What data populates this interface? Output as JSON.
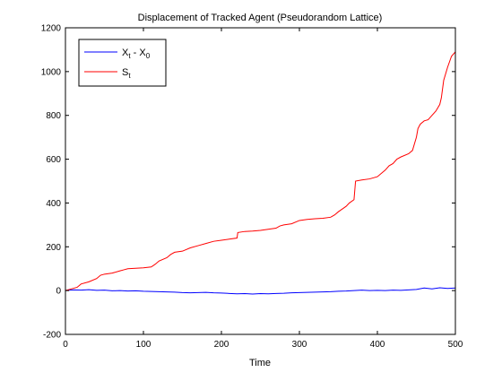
{
  "chart_data": {
    "type": "line",
    "title": "Displacement of Tracked Agent (Pseudorandom Lattice)",
    "xlabel": "Time",
    "ylabel": "",
    "xlim": [
      0,
      500
    ],
    "ylim": [
      -200,
      1200
    ],
    "x_ticks": [
      0,
      100,
      200,
      300,
      400,
      500
    ],
    "y_ticks": [
      -200,
      0,
      200,
      400,
      600,
      800,
      1000,
      1200
    ],
    "grid": false,
    "legend_position": "top-left",
    "series": [
      {
        "name_main": "X",
        "name_sub1": "t",
        "name_mid": " - X",
        "name_sub2": "0",
        "color": "#0000ff",
        "x": [
          0,
          10,
          20,
          30,
          40,
          50,
          60,
          70,
          80,
          90,
          100,
          110,
          120,
          130,
          140,
          150,
          160,
          170,
          180,
          190,
          200,
          210,
          220,
          230,
          240,
          250,
          260,
          270,
          280,
          290,
          300,
          310,
          320,
          330,
          340,
          350,
          360,
          370,
          380,
          390,
          400,
          410,
          420,
          430,
          440,
          450,
          460,
          470,
          480,
          490,
          500
        ],
        "y": [
          0,
          3,
          2,
          4,
          1,
          2,
          -1,
          0,
          -2,
          -1,
          -3,
          -4,
          -5,
          -6,
          -7,
          -9,
          -10,
          -9,
          -8,
          -10,
          -11,
          -13,
          -15,
          -14,
          -16,
          -14,
          -15,
          -13,
          -12,
          -10,
          -9,
          -8,
          -7,
          -6,
          -5,
          -3,
          -2,
          0,
          2,
          0,
          1,
          0,
          2,
          1,
          3,
          5,
          12,
          8,
          13,
          10,
          12
        ]
      },
      {
        "name_main": "S",
        "name_sub1": "t",
        "name_mid": "",
        "name_sub2": "",
        "color": "#ff0000",
        "x": [
          0,
          10,
          15,
          20,
          30,
          40,
          45,
          50,
          60,
          70,
          75,
          80,
          90,
          100,
          110,
          115,
          120,
          130,
          135,
          140,
          150,
          160,
          170,
          180,
          190,
          200,
          210,
          220,
          221,
          230,
          240,
          250,
          260,
          270,
          275,
          280,
          290,
          300,
          310,
          320,
          330,
          340,
          345,
          350,
          360,
          364,
          370,
          372,
          380,
          390,
          400,
          410,
          415,
          420,
          425,
          430,
          440,
          445,
          450,
          452,
          455,
          460,
          465,
          470,
          475,
          480,
          482,
          485,
          490,
          495,
          500
        ],
        "y": [
          0,
          10,
          15,
          30,
          40,
          55,
          70,
          75,
          80,
          90,
          95,
          100,
          102,
          104,
          108,
          120,
          135,
          150,
          165,
          175,
          180,
          195,
          205,
          215,
          225,
          230,
          235,
          240,
          265,
          270,
          272,
          275,
          280,
          285,
          295,
          300,
          305,
          320,
          325,
          328,
          330,
          335,
          345,
          360,
          385,
          400,
          415,
          500,
          505,
          510,
          520,
          550,
          570,
          580,
          600,
          610,
          625,
          640,
          700,
          740,
          760,
          775,
          780,
          800,
          820,
          850,
          880,
          960,
          1020,
          1070,
          1090
        ]
      }
    ]
  }
}
